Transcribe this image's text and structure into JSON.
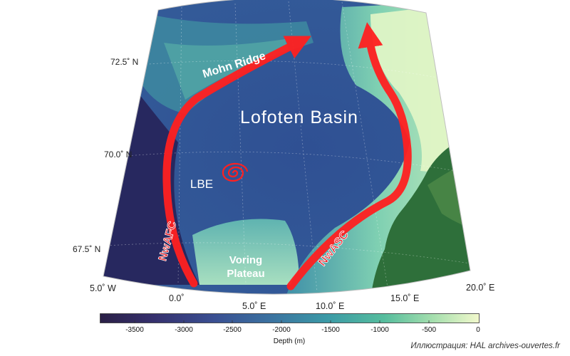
{
  "map": {
    "lat_labels": [
      "72.5˚ N",
      "70.0˚ N",
      "67.5˚ N"
    ],
    "lon_labels": [
      "5.0˚ W",
      "0.0˚",
      "5.0˚ E",
      "10.0˚ E",
      "15.0˚ E",
      "20.0˚ E"
    ],
    "features": {
      "basin": "Lofoten Basin",
      "ridge": "Mohn Ridge",
      "eddy": "LBE",
      "plateau_line1": "Voring",
      "plateau_line2": "Plateau",
      "current_west": "NwAFC",
      "current_east": "NwASC"
    },
    "colors": {
      "current": "#ff2020",
      "deep": "#2c2d6b",
      "mid": "#3a74a2",
      "shallow": "#7fd1b4",
      "land": "#2e6f3a"
    }
  },
  "colorbar": {
    "ticks": [
      "-3500",
      "-3000",
      "-2500",
      "-2000",
      "-1500",
      "-1000",
      "-500",
      "0"
    ],
    "label": "Depth (m)"
  },
  "credit": "Иллюстрация: HAL archives-ouvertes.fr"
}
